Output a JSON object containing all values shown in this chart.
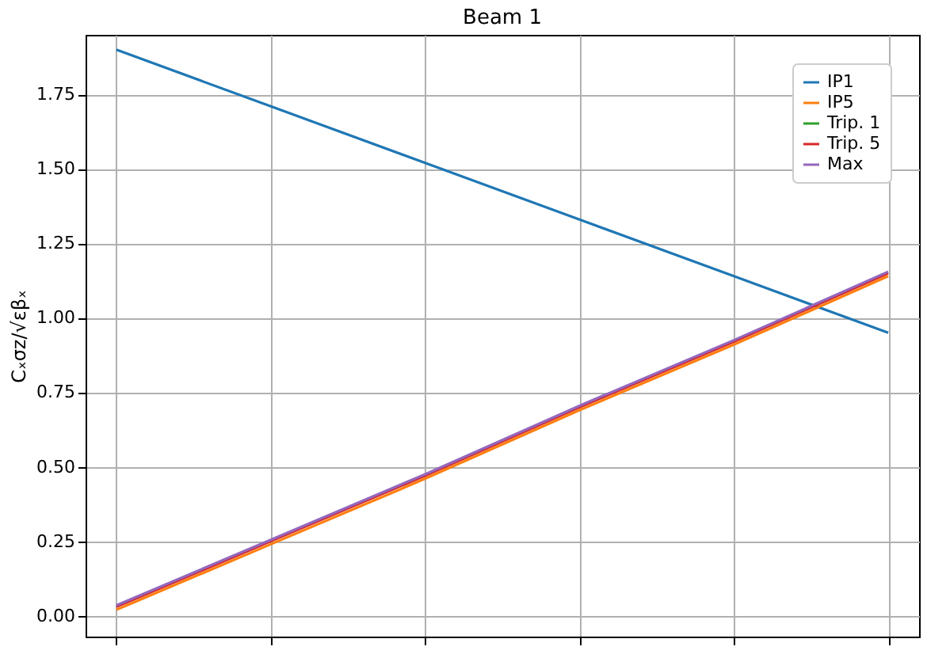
{
  "chart_data": {
    "type": "line",
    "title": "Beam 1",
    "ylabel": "Cₓσz/√εβₓ",
    "categories": [
      null,
      null,
      null,
      null,
      null,
      null
    ],
    "series": [
      {
        "name": "IP1",
        "color": "#1f77b4",
        "values": [
          1.9,
          1.71,
          1.52,
          1.33,
          1.14,
          0.95
        ]
      },
      {
        "name": "IP5",
        "color": "#ff7f0e",
        "values": [
          0.02,
          0.24,
          0.46,
          0.69,
          0.91,
          1.14
        ]
      },
      {
        "name": "Trip. 1",
        "color": "#2ca02c",
        "values": [
          null,
          null,
          null,
          null,
          null,
          null
        ]
      },
      {
        "name": "Trip. 5",
        "color": "#d62728",
        "values": [
          0.03,
          0.25,
          0.47,
          0.7,
          0.92,
          1.15
        ]
      },
      {
        "name": "Max",
        "color": "#9467bd",
        "values": [
          0.035,
          0.255,
          0.475,
          0.705,
          0.925,
          1.155
        ]
      }
    ],
    "ylim": [
      -0.07,
      1.95
    ],
    "yticks": [
      {
        "value": 0,
        "label": "0.00"
      },
      0.25,
      {
        "value": 0.5,
        "label": "0.50"
      },
      0.75,
      {
        "value": 1,
        "label": "1.00"
      },
      1.25,
      {
        "value": 1.5,
        "label": "1.50"
      },
      1.75
    ],
    "grid": true,
    "legend": "top right",
    "tick_labels": "y",
    "line_style": "solid",
    "marker": "none"
  }
}
